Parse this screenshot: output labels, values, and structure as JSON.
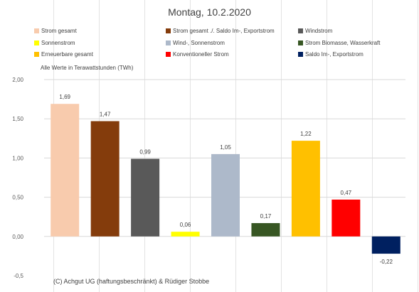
{
  "chart_data": {
    "type": "bar",
    "title": "Montag, 10.2.2020",
    "note": "Alle Werte in Terawattstunden (TWh)",
    "copyright": "(C) Achgut UG (haftungsbeschränkt) & Rüdiger Stobbe",
    "categories": [
      "Strom gesamt",
      "Strom gesamt ./. Saldo Im-, Exportstrom",
      "Windstrom",
      "Sonnenstrom",
      "Wind-, Sonnenstrom",
      "Strom Biomasse, Wasserkraft",
      "Erneuerbare gesamt",
      "Konventioneller Strom",
      "Saldo Im-, Exportstrom"
    ],
    "values": [
      1.69,
      1.47,
      0.99,
      0.06,
      1.05,
      0.17,
      1.22,
      0.47,
      -0.22
    ],
    "value_labels": [
      "1,69",
      "1,47",
      "0,99",
      "0,06",
      "1,05",
      "0,17",
      "1,22",
      "0,47",
      "-0,22"
    ],
    "colors": [
      "#F8CBAD",
      "#843C0C",
      "#595959",
      "#FFFF00",
      "#ADB9CA",
      "#375623",
      "#FFC000",
      "#FF0000",
      "#002060"
    ],
    "yticks": [
      2.0,
      1.5,
      1.0,
      0.5,
      0.0,
      -0.5
    ],
    "ytick_labels": [
      "2,00",
      "1,50",
      "1,00",
      "0,50",
      "0,00",
      "-0,5"
    ],
    "ylim": [
      -0.5,
      2.0
    ],
    "grid": true,
    "legend_position": "top"
  }
}
